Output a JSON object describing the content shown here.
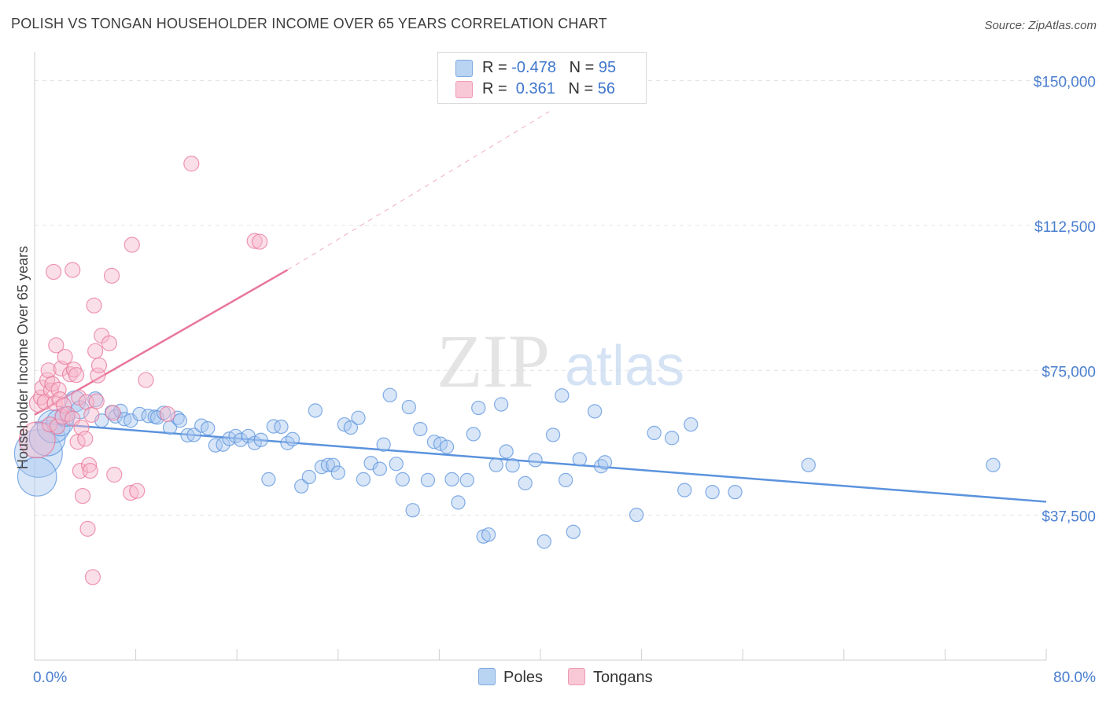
{
  "title": "POLISH VS TONGAN HOUSEHOLDER INCOME OVER 65 YEARS CORRELATION CHART",
  "source": "Source: ZipAtlas.com",
  "watermark": {
    "zip": "ZIP",
    "atlas": "atlas"
  },
  "legend": {
    "rows": [
      {
        "r_label": "R = ",
        "r_value": "-0.478",
        "n_label": "N = ",
        "n_value": "95",
        "color": "#a8c8f0"
      },
      {
        "r_label": "R = ",
        "r_value": " 0.361",
        "n_label": "N = ",
        "n_value": "56",
        "color": "#f7b8cc"
      }
    ]
  },
  "bottom_legend": {
    "poles": "Poles",
    "tongans": "Tongans"
  },
  "chart_data": {
    "type": "scatter",
    "title": "POLISH VS TONGAN HOUSEHOLDER INCOME OVER 65 YEARS CORRELATION CHART",
    "xlabel": "",
    "ylabel": "Householder Income Over 65 years",
    "xlim": [
      0,
      80
    ],
    "ylim": [
      0,
      155000
    ],
    "x_tick_labels": [
      "0.0%",
      "80.0%"
    ],
    "y_ticks": [
      {
        "value": 37500,
        "label": "$37,500"
      },
      {
        "value": 75000,
        "label": "$75,000"
      },
      {
        "value": 112500,
        "label": "$112,500"
      },
      {
        "value": 150000,
        "label": "$150,000"
      }
    ],
    "grid": "horizontal dashed",
    "legend_position": "top-center",
    "series": [
      {
        "name": "Poles",
        "color": "#5b93dd",
        "fill": "#a8c8f0",
        "trend": {
          "x": [
            0,
            80
          ],
          "y": [
            61500,
            41000
          ]
        },
        "points": [
          [
            0.3,
            53500,
            3.2
          ],
          [
            0.2,
            47500,
            2.6
          ],
          [
            1,
            57500,
            2.4
          ],
          [
            1.5,
            60500,
            2.2
          ],
          [
            2,
            61500,
            1.8
          ],
          [
            2.4,
            63000,
            1.3
          ],
          [
            3.2,
            67000,
            1.4
          ],
          [
            3.6,
            64800,
            1.2
          ],
          [
            4.8,
            67500,
            1.0
          ],
          [
            5.3,
            62000,
            0.9
          ],
          [
            6.1,
            64200,
            0.9
          ],
          [
            6.4,
            63100,
            0.9
          ],
          [
            6.8,
            64500,
            0.9
          ],
          [
            7.1,
            62400,
            0.9
          ],
          [
            7.6,
            62000,
            0.9
          ],
          [
            8.3,
            63700,
            0.9
          ],
          [
            9,
            63200,
            0.9
          ],
          [
            9.5,
            63000,
            0.9
          ],
          [
            9.7,
            62800,
            0.9
          ],
          [
            10.2,
            64000,
            0.9
          ],
          [
            10.7,
            60200,
            0.9
          ],
          [
            11.3,
            62700,
            0.9
          ],
          [
            11.5,
            62000,
            0.9
          ],
          [
            12.1,
            58200,
            0.9
          ],
          [
            12.6,
            58300,
            0.9
          ],
          [
            13.2,
            60700,
            0.9
          ],
          [
            13.7,
            60000,
            0.9
          ],
          [
            14.3,
            55600,
            0.9
          ],
          [
            14.9,
            55800,
            0.9
          ],
          [
            15.4,
            57300,
            0.9
          ],
          [
            15.9,
            58000,
            0.9
          ],
          [
            16.3,
            57000,
            0.9
          ],
          [
            16.9,
            58000,
            0.9
          ],
          [
            17.4,
            56200,
            0.9
          ],
          [
            17.9,
            57000,
            0.9
          ],
          [
            18.5,
            46800,
            0.9
          ],
          [
            18.9,
            60500,
            0.9
          ],
          [
            19.5,
            60400,
            0.9
          ],
          [
            20,
            56200,
            0.9
          ],
          [
            20.4,
            57200,
            0.9
          ],
          [
            21.1,
            45000,
            0.9
          ],
          [
            21.7,
            47400,
            0.9
          ],
          [
            22.2,
            64600,
            0.9
          ],
          [
            22.7,
            50000,
            0.9
          ],
          [
            23.2,
            50500,
            0.9
          ],
          [
            23.6,
            50500,
            0.9
          ],
          [
            24,
            48500,
            0.9
          ],
          [
            24.5,
            61000,
            0.9
          ],
          [
            25,
            60200,
            0.9
          ],
          [
            25.6,
            62700,
            0.9
          ],
          [
            26,
            46800,
            0.9
          ],
          [
            26.6,
            51000,
            0.9
          ],
          [
            27.3,
            49500,
            0.9
          ],
          [
            27.6,
            55800,
            0.9
          ],
          [
            28.1,
            68600,
            0.9
          ],
          [
            28.6,
            50800,
            0.9
          ],
          [
            29.1,
            46800,
            0.9
          ],
          [
            29.6,
            65500,
            0.9
          ],
          [
            29.9,
            38800,
            0.9
          ],
          [
            30.5,
            59800,
            0.9
          ],
          [
            31.1,
            46600,
            0.9
          ],
          [
            31.6,
            56500,
            0.9
          ],
          [
            32.1,
            56000,
            0.9
          ],
          [
            32.6,
            55200,
            0.9
          ],
          [
            33,
            46800,
            0.9
          ],
          [
            33.5,
            40800,
            0.9
          ],
          [
            34.2,
            46600,
            0.9
          ],
          [
            34.7,
            58500,
            0.9
          ],
          [
            35.1,
            65300,
            0.9
          ],
          [
            35.5,
            32000,
            0.9
          ],
          [
            35.9,
            32500,
            0.9
          ],
          [
            36.5,
            50500,
            0.9
          ],
          [
            36.9,
            66200,
            0.9
          ],
          [
            37.3,
            54000,
            0.9
          ],
          [
            37.8,
            50400,
            0.9
          ],
          [
            38.8,
            45800,
            0.9
          ],
          [
            39.6,
            51800,
            0.9
          ],
          [
            40.3,
            30700,
            0.9
          ],
          [
            41,
            58300,
            0.9
          ],
          [
            41.7,
            68500,
            0.9
          ],
          [
            42,
            46600,
            0.9
          ],
          [
            42.6,
            33200,
            0.9
          ],
          [
            43.1,
            52000,
            0.9
          ],
          [
            44.3,
            64400,
            0.9
          ],
          [
            44.8,
            50200,
            0.9
          ],
          [
            45.1,
            51200,
            0.9
          ],
          [
            47.6,
            37600,
            0.9
          ],
          [
            49,
            58800,
            0.9
          ],
          [
            50.4,
            57500,
            0.9
          ],
          [
            51.4,
            44000,
            0.9
          ],
          [
            51.9,
            61000,
            0.9
          ],
          [
            53.6,
            43500,
            0.9
          ],
          [
            55.4,
            43500,
            0.9
          ],
          [
            61.2,
            50500,
            0.9
          ],
          [
            75.8,
            50500,
            0.9
          ]
        ]
      },
      {
        "name": "Tongans",
        "color": "#e8769a",
        "fill": "#f7b8cc",
        "trend": {
          "x": [
            0,
            20
          ],
          "y": [
            63500,
            101000
          ]
        },
        "trend_extension": {
          "x": [
            20,
            40.7
          ],
          "y": [
            101000,
            142000
          ]
        },
        "points": [
          [
            0.2,
            57000,
            2.4
          ],
          [
            0.3,
            66500,
            1.2
          ],
          [
            0.5,
            68000,
            1.0
          ],
          [
            0.6,
            70500,
            1.0
          ],
          [
            0.8,
            66800,
            1.0
          ],
          [
            1,
            72500,
            1.0
          ],
          [
            1.1,
            75000,
            1.0
          ],
          [
            1.2,
            61000,
            1.0
          ],
          [
            1.3,
            69800,
            1.0
          ],
          [
            1.4,
            71500,
            1.0
          ],
          [
            1.5,
            100500,
            1.0
          ],
          [
            1.6,
            66500,
            1.0
          ],
          [
            1.7,
            81500,
            1.0
          ],
          [
            1.8,
            60500,
            1.0
          ],
          [
            1.9,
            70000,
            1.0
          ],
          [
            2,
            67500,
            1.0
          ],
          [
            2.1,
            75500,
            1.0
          ],
          [
            2.2,
            63000,
            1.0
          ],
          [
            2.3,
            66000,
            1.0
          ],
          [
            2.4,
            78500,
            1.0
          ],
          [
            2.6,
            63700,
            1.0
          ],
          [
            2.8,
            74000,
            1.0
          ],
          [
            3,
            62500,
            1.0
          ],
          [
            3,
            101000,
            1.0
          ],
          [
            3.1,
            75200,
            1.0
          ],
          [
            3.3,
            73800,
            1.0
          ],
          [
            3.4,
            56500,
            1.0
          ],
          [
            3.5,
            68000,
            1.0
          ],
          [
            3.6,
            49000,
            1.0
          ],
          [
            3.7,
            60200,
            1.0
          ],
          [
            3.8,
            42500,
            1.0
          ],
          [
            4,
            57300,
            1.0
          ],
          [
            4.1,
            66800,
            1.0
          ],
          [
            4.2,
            34000,
            1.0
          ],
          [
            4.3,
            50500,
            1.0
          ],
          [
            4.4,
            49000,
            1.0
          ],
          [
            4.5,
            63500,
            1.0
          ],
          [
            4.6,
            21500,
            1.0
          ],
          [
            4.7,
            91800,
            1.0
          ],
          [
            4.8,
            80000,
            1.0
          ],
          [
            4.9,
            67000,
            1.0
          ],
          [
            5,
            73700,
            1.0
          ],
          [
            5.1,
            76300,
            1.0
          ],
          [
            5.3,
            84000,
            1.0
          ],
          [
            5.9,
            82000,
            1.0
          ],
          [
            6.1,
            99500,
            1.0
          ],
          [
            6.2,
            64000,
            1.0
          ],
          [
            6.3,
            48000,
            1.0
          ],
          [
            7.6,
            43300,
            1.0
          ],
          [
            8.1,
            43800,
            1.0
          ],
          [
            7.7,
            107500,
            1.0
          ],
          [
            8.8,
            72500,
            1.0
          ],
          [
            10.5,
            63700,
            1.0
          ],
          [
            12.4,
            128500,
            1.0
          ],
          [
            17.4,
            108500,
            1.0
          ],
          [
            17.8,
            108300,
            1.0
          ]
        ]
      }
    ]
  }
}
